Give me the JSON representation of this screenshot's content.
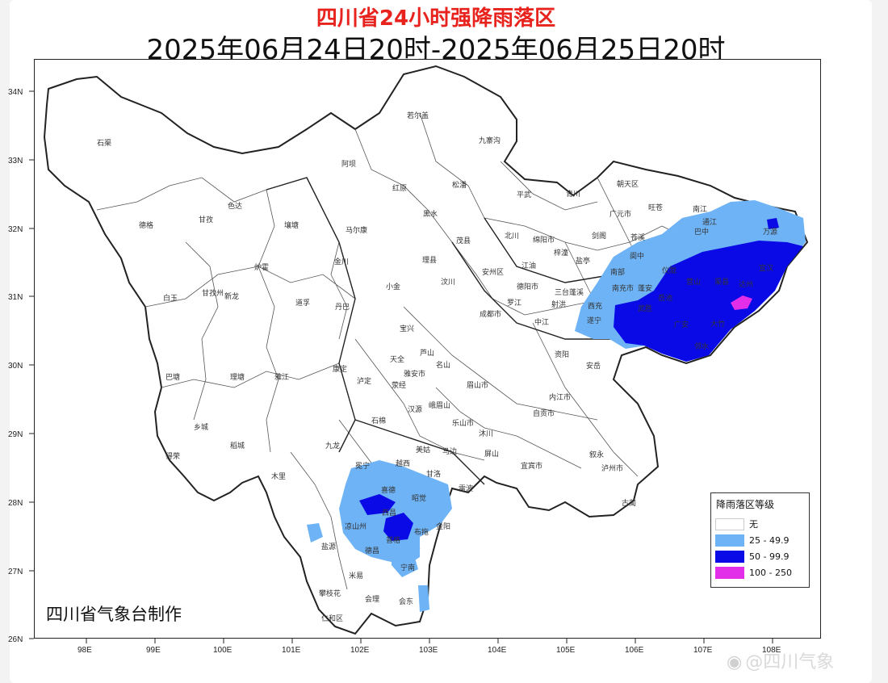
{
  "header": {
    "title": "四川省24小时强降雨落区",
    "subtitle": "2025年06月24日20时-2025年06月25日20时"
  },
  "map": {
    "lat_ticks": [
      "34N",
      "33N",
      "32N",
      "31N",
      "30N",
      "29N",
      "28N",
      "27N",
      "26N"
    ],
    "lon_ticks": [
      "98E",
      "99E",
      "100E",
      "101E",
      "102E",
      "103E",
      "104E",
      "105E",
      "106E",
      "107E",
      "108E"
    ],
    "place_labels": [
      "石渠",
      "色达",
      "甘孜",
      "德格",
      "若尔盖",
      "九寨沟",
      "阿坝",
      "红原",
      "松潘",
      "黑水",
      "马尔康",
      "壤塘",
      "茂县",
      "汶川",
      "理县",
      "小金",
      "金川",
      "丹巴",
      "道孚",
      "炉霍",
      "新龙",
      "白玉",
      "甘孜州",
      "康定",
      "泸定",
      "雅江",
      "理塘",
      "巴塘",
      "乡城",
      "稻城",
      "得荣",
      "九龙",
      "木里",
      "冕宁",
      "喜德",
      "越西",
      "甘洛",
      "西昌",
      "凉山州",
      "盐源",
      "德昌",
      "宁南",
      "会东",
      "会理",
      "米易",
      "攀枝花",
      "仁和区",
      "平武",
      "青川",
      "朝天区",
      "旺苍",
      "广元市",
      "剑阁",
      "苍溪",
      "通江",
      "南江",
      "巴中",
      "万源",
      "宣汉",
      "达州",
      "南充市",
      "阆中",
      "仪陇",
      "营山",
      "渠县",
      "大竹",
      "邻水",
      "广安",
      "岳池",
      "武胜",
      "西充",
      "南部",
      "蓬安",
      "遂宁",
      "射洪",
      "蓬溪",
      "安岳",
      "资阳",
      "内江市",
      "自贡市",
      "宜宾市",
      "泸州市",
      "叙永",
      "古蔺",
      "成都市",
      "眉山市",
      "乐山市",
      "雅安市",
      "绵阳市",
      "德阳市",
      "三台",
      "盐亭",
      "梓潼",
      "北川",
      "江油",
      "安州区",
      "罗江",
      "中江",
      "宝兴",
      "天全",
      "芦山",
      "名山",
      "荥经",
      "汉源",
      "石棉",
      "峨眉山",
      "沐川",
      "马边",
      "屏山",
      "雷波",
      "美姑",
      "昭觉",
      "布拖",
      "金阳",
      "普格"
    ],
    "shaded_regions": [
      {
        "area": "northeast",
        "levels": [
          "25 - 49.9",
          "50 - 99.9",
          "100 - 250"
        ]
      },
      {
        "area": "southwest",
        "levels": [
          "25 - 49.9",
          "50 - 99.9"
        ]
      }
    ]
  },
  "legend": {
    "title": "降雨落区等级",
    "items": [
      {
        "label": "无",
        "color": "#ffffff"
      },
      {
        "label": "25 - 49.9",
        "color": "#6eb3f5"
      },
      {
        "label": "50 - 99.9",
        "color": "#0a0ae6"
      },
      {
        "label": "100 - 250",
        "color": "#e22ee8"
      }
    ]
  },
  "credit": "四川省气象台制作",
  "watermark": "@四川气象"
}
